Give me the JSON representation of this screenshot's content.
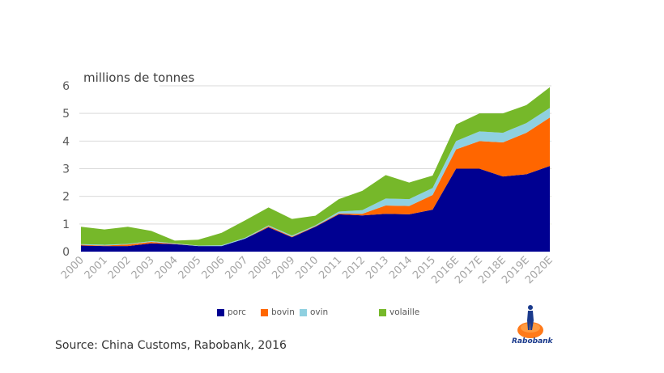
{
  "chart_data": {
    "type": "area",
    "stacked": true,
    "ylabel": "millions de tonnes",
    "ylim": [
      0,
      6
    ],
    "yticks": [
      "0",
      "1",
      "2",
      "3",
      "4",
      "5",
      "6"
    ],
    "grid": true,
    "legend_position": "bottom",
    "categories": [
      "2000",
      "2001",
      "2002",
      "2003",
      "2004",
      "2005",
      "2006",
      "2007",
      "2008",
      "2009",
      "2010",
      "2011",
      "2012",
      "2013",
      "2014",
      "2015",
      "2016E",
      "2017E",
      "2018E",
      "2019E",
      "2020E"
    ],
    "series": [
      {
        "name": "porc",
        "color": "#000091",
        "values": [
          0.22,
          0.2,
          0.2,
          0.3,
          0.27,
          0.2,
          0.2,
          0.47,
          0.88,
          0.52,
          0.9,
          1.35,
          1.31,
          1.37,
          1.35,
          1.52,
          3.0,
          3.0,
          2.72,
          2.8,
          3.1
        ]
      },
      {
        "name": "bovin",
        "color": "#ff6600",
        "values": [
          0.03,
          0.02,
          0.06,
          0.05,
          0.01,
          0,
          0,
          0,
          0.04,
          0.02,
          0.02,
          0.03,
          0.06,
          0.3,
          0.3,
          0.53,
          0.7,
          1.0,
          1.23,
          1.5,
          1.75
        ]
      },
      {
        "name": "ovin",
        "color": "#8fd0e0",
        "values": [
          0.02,
          0.03,
          0.02,
          0.03,
          0.02,
          0.02,
          0.03,
          0.03,
          0.03,
          0.04,
          0.03,
          0.07,
          0.13,
          0.25,
          0.25,
          0.25,
          0.3,
          0.35,
          0.35,
          0.35,
          0.35
        ]
      },
      {
        "name": "volaille",
        "color": "#76b82a",
        "values": [
          0.63,
          0.55,
          0.62,
          0.37,
          0.1,
          0.21,
          0.45,
          0.63,
          0.65,
          0.6,
          0.35,
          0.45,
          0.7,
          0.85,
          0.6,
          0.45,
          0.6,
          0.65,
          0.7,
          0.65,
          0.75
        ]
      }
    ]
  },
  "source": "Source: China Customs, Rabobank, 2016",
  "logo": {
    "text": "Rabobank",
    "color": "#ff6600"
  }
}
